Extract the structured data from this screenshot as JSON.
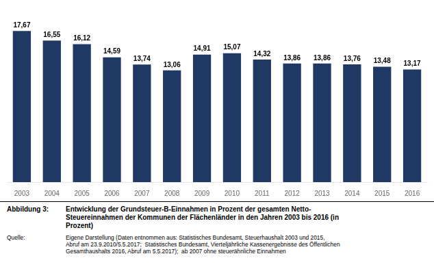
{
  "chart_data": {
    "type": "bar",
    "categories": [
      "2003",
      "2004",
      "2005",
      "2006",
      "2007",
      "2008",
      "2009",
      "2010",
      "2011",
      "2012",
      "2013",
      "2014",
      "2015",
      "2016"
    ],
    "values": [
      17.67,
      16.55,
      16.12,
      14.59,
      13.74,
      13.06,
      14.91,
      15.07,
      14.32,
      13.86,
      13.86,
      13.76,
      13.48,
      13.17
    ],
    "value_labels": [
      "17,67",
      "16,55",
      "16,12",
      "14,59",
      "13,74",
      "13,06",
      "14,91",
      "15,07",
      "14,32",
      "13,86",
      "13,86",
      "13,76",
      "13,48",
      "13,17"
    ],
    "data_labels": true,
    "color": "#1F3864",
    "ylim": [
      0,
      20
    ],
    "grid": false,
    "tick_labels": "x",
    "annotations": [
      "Abbildung 3:",
      "Entwicklung der Grundsteuer-B-Einnahmen in Prozent der gesamten Netto-\nSteuereinnahmen der Kommunen der Flächenländer in den Jahren 2003 bis 2016 (in\nProzent)",
      "Quelle:",
      "Eigene Darstellung (Daten entnommen aus: Statistisches Bundesamt, Steuerhaushalt 2003 und 2015,\nAbruf am 23.9.2010/5.5.2017;  Statistisches Bundesamt, Vierteljährliche Kassenergebnisse des Öffentlichen\nGesamthaushalts 2016, Abruf am 5.5.2017);  ab 2007 ohne steuerähnliche Einnahmen"
    ]
  }
}
